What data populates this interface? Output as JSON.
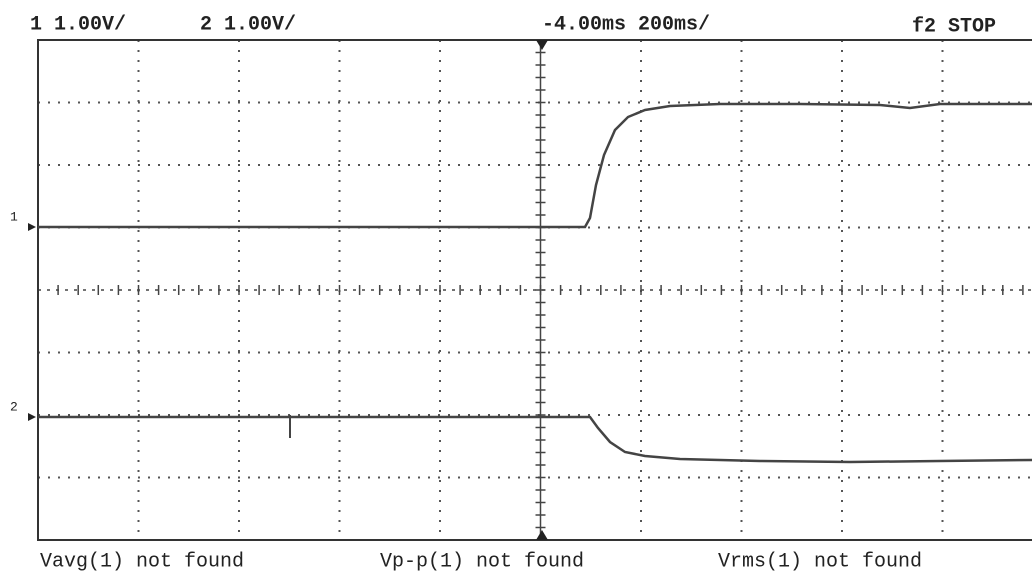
{
  "header": {
    "channel1": "1 1.00V/",
    "channel2": "2 1.00V/",
    "timebase": "-4.00ms 200ms/",
    "status": "f2 STOP"
  },
  "markers": {
    "channel1": "1",
    "channel2": "2"
  },
  "measurements": [
    "Vavg(1) not found",
    "Vp-p(1) not found",
    "Vrms(1) not found"
  ]
}
